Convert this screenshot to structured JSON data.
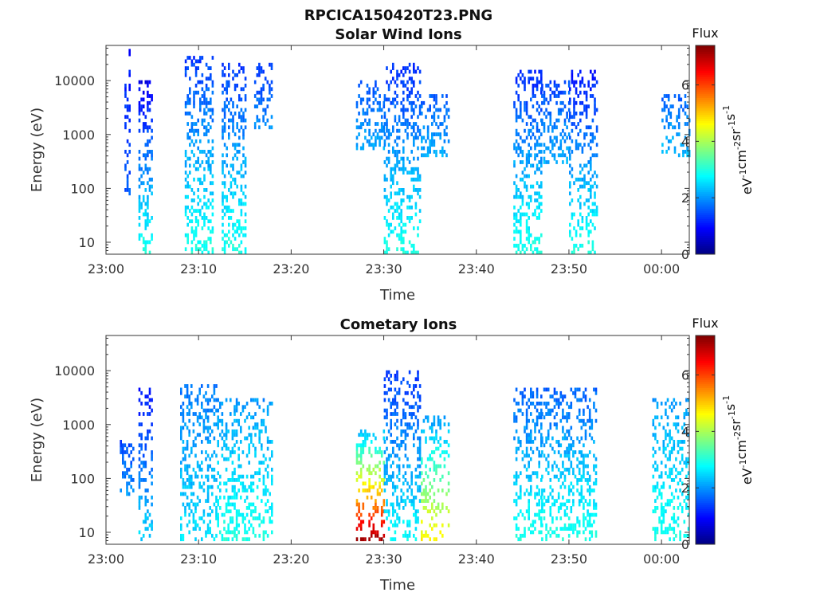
{
  "figure_title": "RPCICA150420T23.PNG",
  "colorbar": {
    "title": "Flux",
    "label_parts": [
      "eV",
      "-1",
      "cm",
      "-2",
      "sr",
      "-1",
      "s",
      "-1"
    ],
    "range": [
      0,
      7.4
    ],
    "ticks": [
      "0",
      "2",
      "4",
      "6"
    ],
    "colormap": "jet"
  },
  "chart_data": [
    {
      "type": "heatmap",
      "title": "Solar Wind Ions",
      "xlabel": "Time",
      "ylabel": "Energy (eV)",
      "yscale": "log",
      "ylim": [
        6,
        45000
      ],
      "xlim_minutes": [
        0,
        63
      ],
      "x_ticks": [
        "23:00",
        "23:10",
        "23:20",
        "23:30",
        "23:40",
        "23:50",
        "00:00"
      ],
      "y_ticks": [
        "10",
        "100",
        "1000",
        "10000"
      ],
      "bursts": [
        {
          "start": "23:02",
          "end": "23:02:30",
          "emin": 80,
          "emax": 40000,
          "fmin": 1.0,
          "fmax": 1.6
        },
        {
          "start": "23:03:30",
          "end": "23:05",
          "emin": 6,
          "emax": 10000,
          "fmin": 0.8,
          "fmax": 3.0
        },
        {
          "start": "23:08:30",
          "end": "23:11:30",
          "emin": 6,
          "emax": 30000,
          "fmin": 1.3,
          "fmax": 3.0
        },
        {
          "start": "23:12:30",
          "end": "23:15",
          "emin": 6,
          "emax": 20000,
          "fmin": 1.3,
          "fmax": 3.0
        },
        {
          "start": "23:16",
          "end": "23:18",
          "emin": 1200,
          "emax": 20000,
          "fmin": 1.3,
          "fmax": 2.0
        },
        {
          "start": "23:27",
          "end": "23:30",
          "emin": 500,
          "emax": 10000,
          "fmin": 1.5,
          "fmax": 2.2
        },
        {
          "start": "23:30",
          "end": "23:34",
          "emin": 6,
          "emax": 20000,
          "fmin": 1.2,
          "fmax": 3.0
        },
        {
          "start": "23:34",
          "end": "23:37",
          "emin": 400,
          "emax": 6000,
          "fmin": 1.5,
          "fmax": 2.2
        },
        {
          "start": "23:44",
          "end": "23:47",
          "emin": 6,
          "emax": 15000,
          "fmin": 1.2,
          "fmax": 3.0
        },
        {
          "start": "23:47",
          "end": "23:50",
          "emin": 300,
          "emax": 10000,
          "fmin": 1.4,
          "fmax": 2.2
        },
        {
          "start": "23:50",
          "end": "23:53",
          "emin": 6,
          "emax": 17000,
          "fmin": 1.0,
          "fmax": 3.0
        },
        {
          "start": "00:00",
          "end": "00:03",
          "emin": 400,
          "emax": 6000,
          "fmin": 1.6,
          "fmax": 2.3
        }
      ]
    },
    {
      "type": "heatmap",
      "title": "Cometary Ions",
      "xlabel": "Time",
      "ylabel": "Energy (eV)",
      "yscale": "log",
      "ylim": [
        6,
        45000
      ],
      "xlim_minutes": [
        0,
        63
      ],
      "x_ticks": [
        "23:00",
        "23:10",
        "23:20",
        "23:30",
        "23:40",
        "23:50",
        "00:00"
      ],
      "y_ticks": [
        "10",
        "100",
        "1000",
        "10000"
      ],
      "bursts": [
        {
          "start": "23:01:30",
          "end": "23:03",
          "emin": 50,
          "emax": 500,
          "fmin": 1.4,
          "fmax": 2.0
        },
        {
          "start": "23:03:30",
          "end": "23:05",
          "emin": 7,
          "emax": 4500,
          "fmin": 1.0,
          "fmax": 2.5
        },
        {
          "start": "23:08",
          "end": "23:12",
          "emin": 7,
          "emax": 6000,
          "fmin": 1.8,
          "fmax": 2.6
        },
        {
          "start": "23:12",
          "end": "23:18",
          "emin": 7,
          "emax": 3000,
          "fmin": 2.0,
          "fmax": 3.0
        },
        {
          "start": "23:27",
          "end": "23:30",
          "emin": 7,
          "emax": 800,
          "fmin": 2.2,
          "fmax": 7.2
        },
        {
          "start": "23:30",
          "end": "23:34",
          "emin": 7,
          "emax": 10000,
          "fmin": 1.3,
          "fmax": 2.8
        },
        {
          "start": "23:34",
          "end": "23:37",
          "emin": 7,
          "emax": 1500,
          "fmin": 2.0,
          "fmax": 4.8
        },
        {
          "start": "23:44",
          "end": "23:47",
          "emin": 7,
          "emax": 5000,
          "fmin": 1.6,
          "fmax": 3.0
        },
        {
          "start": "23:47",
          "end": "23:53",
          "emin": 7,
          "emax": 5000,
          "fmin": 1.6,
          "fmax": 3.0
        },
        {
          "start": "23:59",
          "end": "00:03",
          "emin": 7,
          "emax": 3000,
          "fmin": 2.0,
          "fmax": 3.0
        }
      ]
    }
  ]
}
